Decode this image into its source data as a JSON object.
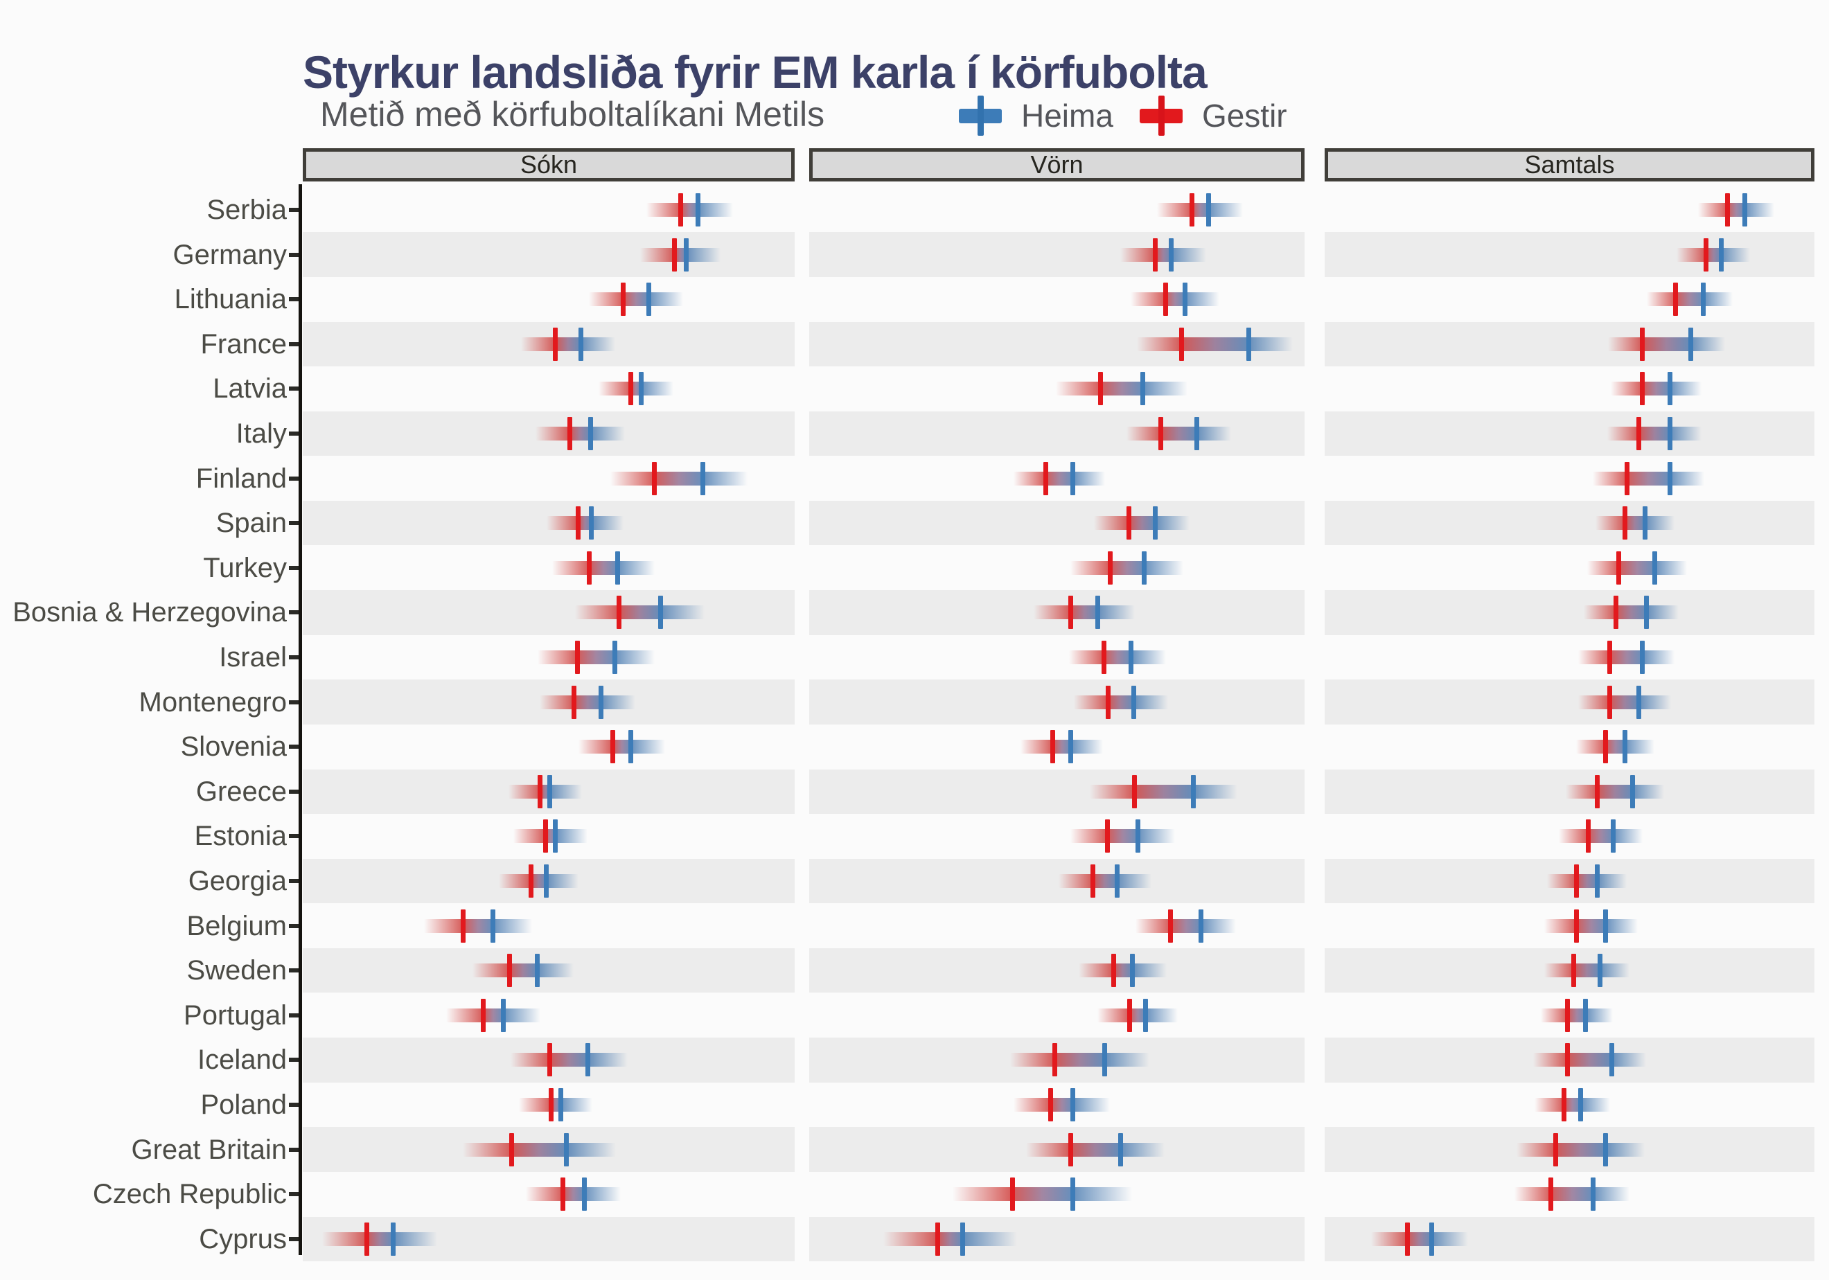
{
  "header": {
    "title": "Styrkur landsliða fyrir EM karla í körfubolta",
    "subtitle": "Metið með körfuboltalíkani Metils"
  },
  "legend": {
    "items": [
      {
        "label": "Heima",
        "color": "#3d7cb8"
      },
      {
        "label": "Gestir",
        "color": "#e2191d"
      }
    ]
  },
  "facets": [
    {
      "label": "Sókn"
    },
    {
      "label": "Vörn"
    },
    {
      "label": "Samtals"
    }
  ],
  "colors": {
    "home_blue": "#3d7cb8",
    "away_red": "#e2191d",
    "band_red": "#cd3734",
    "band_mid": "#7d557d",
    "band_blue": "#4678af",
    "stripe_gray": "#ececec",
    "strip_bg": "#d9d9d9",
    "strip_border": "#403e39",
    "title_color": "#3c4168",
    "subtitle_color": "#55565a",
    "label_color": "#4b4b45",
    "axis_color": "#15130f"
  },
  "chart_data": {
    "type": "scatter",
    "title": "Styrkur landsliða fyrir EM karla í körfubolta",
    "subtitle": "Metið með körfuboltalíkani Metils",
    "facets": [
      "Sókn",
      "Vörn",
      "Samtals"
    ],
    "series": [
      {
        "name": "Heima",
        "color": "#3d7cb8"
      },
      {
        "name": "Gestir",
        "color": "#e2191d"
      }
    ],
    "x_axis": {
      "note": "no numeric axis labels shown in figure; marker positions encoded as percent of facet panel width",
      "range_pct": [
        0,
        100
      ]
    },
    "legend_position": "top",
    "grid": "off",
    "rows": [
      {
        "country": "Serbia",
        "sokn": {
          "gestir": 76.8,
          "heima": 80.4,
          "spread": 7
        },
        "vorn": {
          "gestir": 77.2,
          "heima": 80.6,
          "spread": 7
        },
        "samtals": {
          "gestir": 82.2,
          "heima": 85.8,
          "spread": 6
        }
      },
      {
        "country": "Germany",
        "sokn": {
          "gestir": 75.6,
          "heima": 78.0,
          "spread": 7
        },
        "vorn": {
          "gestir": 69.8,
          "heima": 73.1,
          "spread": 7
        },
        "samtals": {
          "gestir": 77.8,
          "heima": 80.9,
          "spread": 6
        }
      },
      {
        "country": "Lithuania",
        "sokn": {
          "gestir": 65.2,
          "heima": 70.3,
          "spread": 7
        },
        "vorn": {
          "gestir": 71.9,
          "heima": 75.8,
          "spread": 7
        },
        "samtals": {
          "gestir": 71.7,
          "heima": 77.3,
          "spread": 6
        }
      },
      {
        "country": "France",
        "sokn": {
          "gestir": 51.4,
          "heima": 56.5,
          "spread": 7
        },
        "vorn": {
          "gestir": 75.1,
          "heima": 88.7,
          "spread": 9
        },
        "samtals": {
          "gestir": 64.9,
          "heima": 74.7,
          "spread": 7
        }
      },
      {
        "country": "Latvia",
        "sokn": {
          "gestir": 66.7,
          "heima": 68.8,
          "spread": 6.5
        },
        "vorn": {
          "gestir": 58.8,
          "heima": 67.4,
          "spread": 9
        },
        "samtals": {
          "gestir": 64.9,
          "heima": 70.5,
          "spread": 6.5
        }
      },
      {
        "country": "Italy",
        "sokn": {
          "gestir": 54.3,
          "heima": 58.5,
          "spread": 7
        },
        "vorn": {
          "gestir": 71.0,
          "heima": 78.2,
          "spread": 7
        },
        "samtals": {
          "gestir": 64.2,
          "heima": 70.5,
          "spread": 6.5
        }
      },
      {
        "country": "Finland",
        "sokn": {
          "gestir": 71.5,
          "heima": 81.4,
          "spread": 9
        },
        "vorn": {
          "gestir": 47.7,
          "heima": 53.2,
          "spread": 6.5
        },
        "samtals": {
          "gestir": 61.8,
          "heima": 70.5,
          "spread": 7
        }
      },
      {
        "country": "Spain",
        "sokn": {
          "gestir": 56.0,
          "heima": 58.7,
          "spread": 6.5
        },
        "vorn": {
          "gestir": 64.5,
          "heima": 69.8,
          "spread": 7
        },
        "samtals": {
          "gestir": 61.3,
          "heima": 65.4,
          "spread": 6
        }
      },
      {
        "country": "Turkey",
        "sokn": {
          "gestir": 58.2,
          "heima": 64.0,
          "spread": 7.5
        },
        "vorn": {
          "gestir": 60.7,
          "heima": 67.6,
          "spread": 8
        },
        "samtals": {
          "gestir": 60.1,
          "heima": 67.4,
          "spread": 6.5
        }
      },
      {
        "country": "Bosnia & Herzegovina",
        "sokn": {
          "gestir": 64.3,
          "heima": 72.7,
          "spread": 9
        },
        "vorn": {
          "gestir": 52.8,
          "heima": 58.3,
          "spread": 7.5
        },
        "samtals": {
          "gestir": 59.4,
          "heima": 65.7,
          "spread": 6.5
        }
      },
      {
        "country": "Israel",
        "sokn": {
          "gestir": 55.8,
          "heima": 63.5,
          "spread": 8
        },
        "vorn": {
          "gestir": 59.5,
          "heima": 65.0,
          "spread": 7
        },
        "samtals": {
          "gestir": 58.2,
          "heima": 64.9,
          "spread": 6.5
        }
      },
      {
        "country": "Montenegro",
        "sokn": {
          "gestir": 55.1,
          "heima": 60.6,
          "spread": 7
        },
        "vorn": {
          "gestir": 60.4,
          "heima": 65.5,
          "spread": 7
        },
        "samtals": {
          "gestir": 58.2,
          "heima": 64.2,
          "spread": 6.5
        }
      },
      {
        "country": "Slovenia",
        "sokn": {
          "gestir": 63.0,
          "heima": 66.7,
          "spread": 7
        },
        "vorn": {
          "gestir": 49.2,
          "heima": 52.8,
          "spread": 6.5
        },
        "samtals": {
          "gestir": 57.4,
          "heima": 61.3,
          "spread": 6
        }
      },
      {
        "country": "Greece",
        "sokn": {
          "gestir": 48.3,
          "heima": 50.2,
          "spread": 6.5
        },
        "vorn": {
          "gestir": 65.7,
          "heima": 77.5,
          "spread": 9
        },
        "samtals": {
          "gestir": 55.7,
          "heima": 62.8,
          "spread": 6.5
        }
      },
      {
        "country": "Estonia",
        "sokn": {
          "gestir": 49.3,
          "heima": 51.4,
          "spread": 6.5
        },
        "vorn": {
          "gestir": 60.2,
          "heima": 66.4,
          "spread": 7.5
        },
        "samtals": {
          "gestir": 53.8,
          "heima": 58.9,
          "spread": 6
        }
      },
      {
        "country": "Georgia",
        "sokn": {
          "gestir": 46.4,
          "heima": 49.5,
          "spread": 6.5
        },
        "vorn": {
          "gestir": 57.3,
          "heima": 62.1,
          "spread": 7
        },
        "samtals": {
          "gestir": 51.4,
          "heima": 55.7,
          "spread": 6
        }
      },
      {
        "country": "Belgium",
        "sokn": {
          "gestir": 32.6,
          "heima": 38.6,
          "spread": 8
        },
        "vorn": {
          "gestir": 72.9,
          "heima": 79.1,
          "spread": 7
        },
        "samtals": {
          "gestir": 51.4,
          "heima": 57.4,
          "spread": 6.5
        }
      },
      {
        "country": "Sweden",
        "sokn": {
          "gestir": 42.0,
          "heima": 47.6,
          "spread": 7.5
        },
        "vorn": {
          "gestir": 61.4,
          "heima": 65.2,
          "spread": 7
        },
        "samtals": {
          "gestir": 50.9,
          "heima": 56.2,
          "spread": 6
        }
      },
      {
        "country": "Portugal",
        "sokn": {
          "gestir": 36.7,
          "heima": 40.8,
          "spread": 7.5
        },
        "vorn": {
          "gestir": 64.7,
          "heima": 67.9,
          "spread": 6.5
        },
        "samtals": {
          "gestir": 49.6,
          "heima": 53.3,
          "spread": 5.5
        }
      },
      {
        "country": "Iceland",
        "sokn": {
          "gestir": 50.2,
          "heima": 58.0,
          "spread": 8
        },
        "vorn": {
          "gestir": 49.6,
          "heima": 59.7,
          "spread": 9
        },
        "samtals": {
          "gestir": 49.6,
          "heima": 58.6,
          "spread": 7
        }
      },
      {
        "country": "Poland",
        "sokn": {
          "gestir": 50.5,
          "heima": 52.4,
          "spread": 6.5
        },
        "vorn": {
          "gestir": 48.7,
          "heima": 53.2,
          "spread": 7.5
        },
        "samtals": {
          "gestir": 48.9,
          "heima": 52.3,
          "spread": 6
        }
      },
      {
        "country": "Great Britain",
        "sokn": {
          "gestir": 42.5,
          "heima": 53.6,
          "spread": 10
        },
        "vorn": {
          "gestir": 52.8,
          "heima": 62.8,
          "spread": 9
        },
        "samtals": {
          "gestir": 47.2,
          "heima": 57.4,
          "spread": 8
        }
      },
      {
        "country": "Czech Republic",
        "sokn": {
          "gestir": 52.9,
          "heima": 57.2,
          "spread": 7.5
        },
        "vorn": {
          "gestir": 41.0,
          "heima": 53.2,
          "spread": 12
        },
        "samtals": {
          "gestir": 46.2,
          "heima": 54.8,
          "spread": 7.5
        }
      },
      {
        "country": "Cyprus",
        "sokn": {
          "gestir": 13.0,
          "heima": 18.4,
          "spread": 9
        },
        "vorn": {
          "gestir": 26.0,
          "heima": 31.0,
          "spread": 11
        },
        "samtals": {
          "gestir": 16.9,
          "heima": 21.8,
          "spread": 7.5
        }
      }
    ]
  }
}
